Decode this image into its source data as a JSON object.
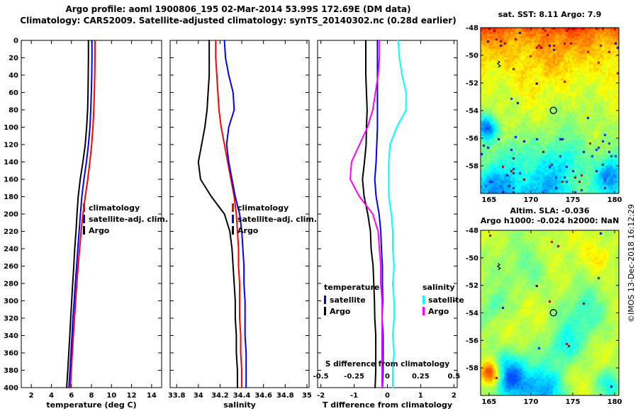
{
  "titles": {
    "line1": "Argo profile: aoml 1900806_195 02-Mar-2014 53.99S 172.69E (DM data)",
    "line2": "Climatology: CARS2009. Satellite-adjusted climatology: synTS_20140302.nc (0.28d earlier)"
  },
  "watermark": "©IMOS 13-Dec-2018 16:12:29",
  "colors": {
    "climatology": "#ff0000",
    "satellite_adj_clim": "#0000ff",
    "argo": "#000000",
    "salinity_satellite": "#00ffff",
    "salinity_argo": "#ff00ff",
    "axis": "#000000",
    "background": "#ffffff"
  },
  "chart_data": [
    {
      "id": "temperature-profile",
      "type": "line",
      "xlabel": "temperature (deg C)",
      "xlim": [
        1,
        15
      ],
      "ylim": [
        0,
        400
      ],
      "xticks": [
        "2",
        "4",
        "6",
        "8",
        "10",
        "12",
        "14"
      ],
      "yticks": [
        "0",
        "20",
        "40",
        "60",
        "80",
        "100",
        "120",
        "140",
        "160",
        "180",
        "200",
        "220",
        "240",
        "260",
        "280",
        "300",
        "320",
        "340",
        "360",
        "380",
        "400"
      ],
      "depths": [
        0,
        20,
        40,
        60,
        80,
        100,
        120,
        140,
        160,
        180,
        200,
        220,
        240,
        260,
        280,
        300,
        320,
        340,
        360,
        380,
        400
      ],
      "legend": [
        {
          "label": "climatology",
          "color": "#ff0000"
        },
        {
          "label": "satellite-adj. clim.",
          "color": "#0000ff"
        },
        {
          "label": "Argo",
          "color": "#000000"
        }
      ],
      "series": [
        {
          "name": "climatology",
          "color": "#ff0000",
          "values": [
            8.35,
            8.35,
            8.33,
            8.29,
            8.23,
            8.15,
            8.02,
            7.84,
            7.63,
            7.38,
            7.15,
            6.97,
            6.82,
            6.67,
            6.54,
            6.42,
            6.31,
            6.19,
            6.09,
            5.99,
            5.9
          ]
        },
        {
          "name": "satellite-adj. clim.",
          "color": "#0000ff",
          "values": [
            8.05,
            8.05,
            8.03,
            7.99,
            7.93,
            7.85,
            7.7,
            7.5,
            7.25,
            7.04,
            6.9,
            6.77,
            6.64,
            6.52,
            6.39,
            6.28,
            6.15,
            6.06,
            5.96,
            5.86,
            5.75
          ]
        },
        {
          "name": "Argo",
          "color": "#000000",
          "values": [
            7.7,
            7.7,
            7.68,
            7.66,
            7.62,
            7.52,
            7.38,
            7.15,
            6.88,
            6.68,
            6.56,
            6.46,
            6.33,
            6.24,
            6.13,
            6.03,
            5.93,
            5.84,
            5.74,
            5.64,
            5.53
          ]
        }
      ]
    },
    {
      "id": "salinity-profile",
      "type": "line",
      "xlabel": "salinity",
      "xlim": [
        33.74,
        35.02
      ],
      "ylim": [
        0,
        400
      ],
      "xticks": [
        "33.8",
        "34",
        "34.2",
        "34.4",
        "34.6",
        "34.8",
        "35"
      ],
      "yticks": [
        "0",
        "20",
        "40",
        "60",
        "80",
        "100",
        "120",
        "140",
        "160",
        "180",
        "200",
        "220",
        "240",
        "260",
        "280",
        "300",
        "320",
        "340",
        "360",
        "380",
        "400"
      ],
      "depths": [
        0,
        20,
        40,
        60,
        80,
        100,
        120,
        140,
        160,
        180,
        200,
        220,
        240,
        260,
        280,
        300,
        320,
        340,
        360,
        380,
        400
      ],
      "legend": [
        {
          "label": "climatology",
          "color": "#ff0000"
        },
        {
          "label": "satellite-adj. clim.",
          "color": "#0000ff"
        },
        {
          "label": "Argo",
          "color": "#000000"
        }
      ],
      "series": [
        {
          "name": "climatology",
          "color": "#ff0000",
          "values": [
            34.16,
            34.16,
            34.17,
            34.18,
            34.19,
            34.21,
            34.24,
            34.27,
            34.3,
            34.33,
            34.35,
            34.36,
            34.37,
            34.37,
            34.38,
            34.38,
            34.38,
            34.39,
            34.39,
            34.4,
            34.4
          ]
        },
        {
          "name": "satellite-adj. clim.",
          "color": "#0000ff",
          "values": [
            34.24,
            34.25,
            34.28,
            34.32,
            34.33,
            34.28,
            34.26,
            34.28,
            34.31,
            34.34,
            34.38,
            34.4,
            34.41,
            34.42,
            34.42,
            34.43,
            34.43,
            34.43,
            34.44,
            34.44,
            34.44
          ]
        },
        {
          "name": "Argo",
          "color": "#000000",
          "values": [
            34.1,
            34.1,
            34.1,
            34.09,
            34.08,
            34.06,
            34.03,
            34.0,
            34.02,
            34.12,
            34.24,
            34.29,
            34.31,
            34.32,
            34.33,
            34.34,
            34.34,
            34.35,
            34.35,
            34.36,
            34.36
          ]
        }
      ]
    },
    {
      "id": "difference-profile",
      "type": "line",
      "xlabel": "T difference from climatology",
      "xlim": [
        -2.1,
        2.1
      ],
      "ylim": [
        0,
        400
      ],
      "xticks": [
        "-2",
        "-1",
        "0",
        "1",
        "2"
      ],
      "yticks": [
        "0",
        "20",
        "40",
        "60",
        "80",
        "100",
        "120",
        "140",
        "160",
        "180",
        "200",
        "220",
        "240",
        "260",
        "280",
        "300",
        "320",
        "340",
        "360",
        "380",
        "400"
      ],
      "depths": [
        0,
        20,
        40,
        60,
        80,
        100,
        120,
        140,
        160,
        180,
        200,
        220,
        240,
        260,
        280,
        300,
        320,
        340,
        360,
        380,
        400
      ],
      "inner_axis": {
        "label": "S difference from climatology",
        "ticks": [
          "-0.5",
          "-0.25",
          "0",
          "0.25",
          "0.5"
        ],
        "scale": 4
      },
      "legend_groups": [
        {
          "title": "temperature",
          "items": [
            {
              "label": "satellite",
              "color": "#0000ff"
            },
            {
              "label": "Argo",
              "color": "#000000"
            }
          ]
        },
        {
          "title": "salinity",
          "items": [
            {
              "label": "satellite",
              "color": "#00ffff"
            },
            {
              "label": "Argo",
              "color": "#ff00ff"
            }
          ]
        }
      ],
      "series": [
        {
          "name": "temperature satellite",
          "axis": "T",
          "color": "#0000ff",
          "values": [
            -0.3,
            -0.3,
            -0.3,
            -0.3,
            -0.3,
            -0.3,
            -0.32,
            -0.34,
            -0.38,
            -0.34,
            -0.25,
            -0.2,
            -0.18,
            -0.15,
            -0.15,
            -0.14,
            -0.16,
            -0.13,
            -0.13,
            -0.13,
            -0.15
          ]
        },
        {
          "name": "temperature Argo",
          "axis": "T",
          "color": "#000000",
          "values": [
            -0.65,
            -0.65,
            -0.65,
            -0.63,
            -0.61,
            -0.63,
            -0.64,
            -0.69,
            -0.75,
            -0.7,
            -0.59,
            -0.51,
            -0.49,
            -0.43,
            -0.41,
            -0.39,
            -0.38,
            -0.35,
            -0.35,
            -0.35,
            -0.37
          ]
        },
        {
          "name": "salinity satellite",
          "axis": "S",
          "color": "#00ffff",
          "values": [
            0.08,
            0.09,
            0.11,
            0.14,
            0.14,
            0.07,
            0.02,
            0.01,
            0.01,
            0.01,
            0.03,
            0.04,
            0.04,
            0.05,
            0.04,
            0.05,
            0.05,
            0.04,
            0.05,
            0.04,
            0.04
          ]
        },
        {
          "name": "salinity Argo",
          "axis": "S",
          "color": "#ff00ff",
          "values": [
            -0.06,
            -0.06,
            -0.07,
            -0.09,
            -0.11,
            -0.15,
            -0.21,
            -0.27,
            -0.28,
            -0.21,
            -0.11,
            -0.07,
            -0.06,
            -0.05,
            -0.05,
            -0.04,
            -0.04,
            -0.04,
            -0.04,
            -0.04,
            -0.04
          ]
        }
      ]
    },
    {
      "id": "sst-map",
      "type": "heatmap",
      "title": "sat. SST: 8.11 Argo: 7.9",
      "values": {
        "sat_sst": 8.11,
        "argo_sst": 7.9
      },
      "xlim": [
        164,
        180.5
      ],
      "ylim": [
        -60,
        -48
      ],
      "xticks": [
        "165",
        "170",
        "175",
        "180"
      ],
      "yticks": [
        "-48",
        "-50",
        "-52",
        "-54",
        "-56",
        "-58"
      ],
      "marker": {
        "lon": 172.69,
        "lat": -53.99
      },
      "track": {
        "lon": 166.1,
        "lat": -50.4
      },
      "dot": {
        "lon": 170.7,
        "lat": -52.05
      },
      "render_hints": {
        "mode": "gradient",
        "top": 0.8,
        "bottom": 0.44,
        "noise": 0.05,
        "jitter": 0.07,
        "speckle": 0.03,
        "seed": 12345,
        "blobs": [
          [
            0.04,
            0.6,
            0.05,
            -0.3
          ],
          [
            0.1,
            0.95,
            0.09,
            -0.22
          ],
          [
            0.45,
            0.97,
            0.1,
            -0.15
          ],
          [
            0.93,
            0.88,
            0.07,
            -0.22
          ],
          [
            0.6,
            0.8,
            0.08,
            -0.1
          ],
          [
            0.25,
            0.75,
            0.07,
            -0.08
          ]
        ]
      }
    },
    {
      "id": "sla-map",
      "type": "heatmap",
      "title_line1": "Altim. SLA: -0.036",
      "title_line2": "Argo h1000: -0.024 h2000: NaN",
      "values": {
        "altim_sla": -0.036,
        "argo_h1000": -0.024,
        "argo_h2000": "NaN"
      },
      "xlim": [
        164,
        180.5
      ],
      "ylim": [
        -60,
        -48
      ],
      "xticks": [
        "165",
        "170",
        "175",
        "180"
      ],
      "yticks": [
        "-48",
        "-50",
        "-52",
        "-54",
        "-56",
        "-58"
      ],
      "marker": {
        "lon": 172.69,
        "lat": -53.99
      },
      "track": {
        "lon": 166.1,
        "lat": -50.4
      },
      "dot": {
        "lon": 170.7,
        "lat": -52.05
      },
      "render_hints": {
        "mode": "flat",
        "base": 0.56,
        "noise": 0.055,
        "jitter": 0.05,
        "speckle": 0.004,
        "seed": 98765,
        "blobs": [
          [
            0.2,
            0.88,
            0.1,
            -0.34
          ],
          [
            0.45,
            0.97,
            0.1,
            -0.26
          ],
          [
            0.07,
            0.86,
            0.05,
            0.34
          ],
          [
            0.1,
            0.45,
            0.06,
            -0.1
          ],
          [
            0.75,
            0.52,
            0.11,
            -0.12
          ],
          [
            0.85,
            0.15,
            0.08,
            0.1
          ],
          [
            0.35,
            0.25,
            0.1,
            -0.08
          ],
          [
            0.6,
            0.7,
            0.08,
            -0.14
          ],
          [
            0.92,
            0.92,
            0.06,
            -0.18
          ]
        ]
      }
    }
  ]
}
